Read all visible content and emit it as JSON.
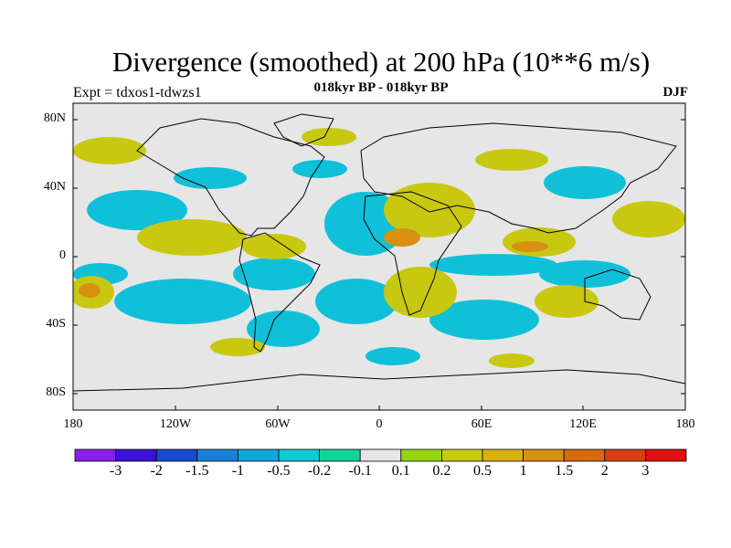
{
  "title": "Divergence (smoothed) at 200 hPa (10**6 m/s)",
  "subtitle": "018kyr BP - 018kyr BP",
  "experiment": "Expt = tdxos1-tdwzs1",
  "season": "DJF",
  "lat_ticks": [
    "80N",
    "40N",
    "0",
    "40S",
    "80S"
  ],
  "lon_ticks": [
    "180",
    "120W",
    "60W",
    "0",
    "60E",
    "120E",
    "180"
  ],
  "colorbar": {
    "colors": [
      "#8a1fe6",
      "#3a12d8",
      "#1a4ad0",
      "#1a80d6",
      "#10a8dc",
      "#10cad8",
      "#10d498",
      "#e6e6e6",
      "#96d410",
      "#c8c810",
      "#d8b010",
      "#d89010",
      "#d86a10",
      "#d84010",
      "#e01010"
    ],
    "labels": [
      "-3",
      "-2",
      "-1.5",
      "-1",
      "-0.5",
      "-0.2",
      "-0.1",
      "0.1",
      "0.2",
      "0.5",
      "1",
      "1.5",
      "2",
      "3"
    ]
  },
  "colors": {
    "background": "#e6e6e6",
    "coast": "#000000",
    "frame": "#000000"
  }
}
